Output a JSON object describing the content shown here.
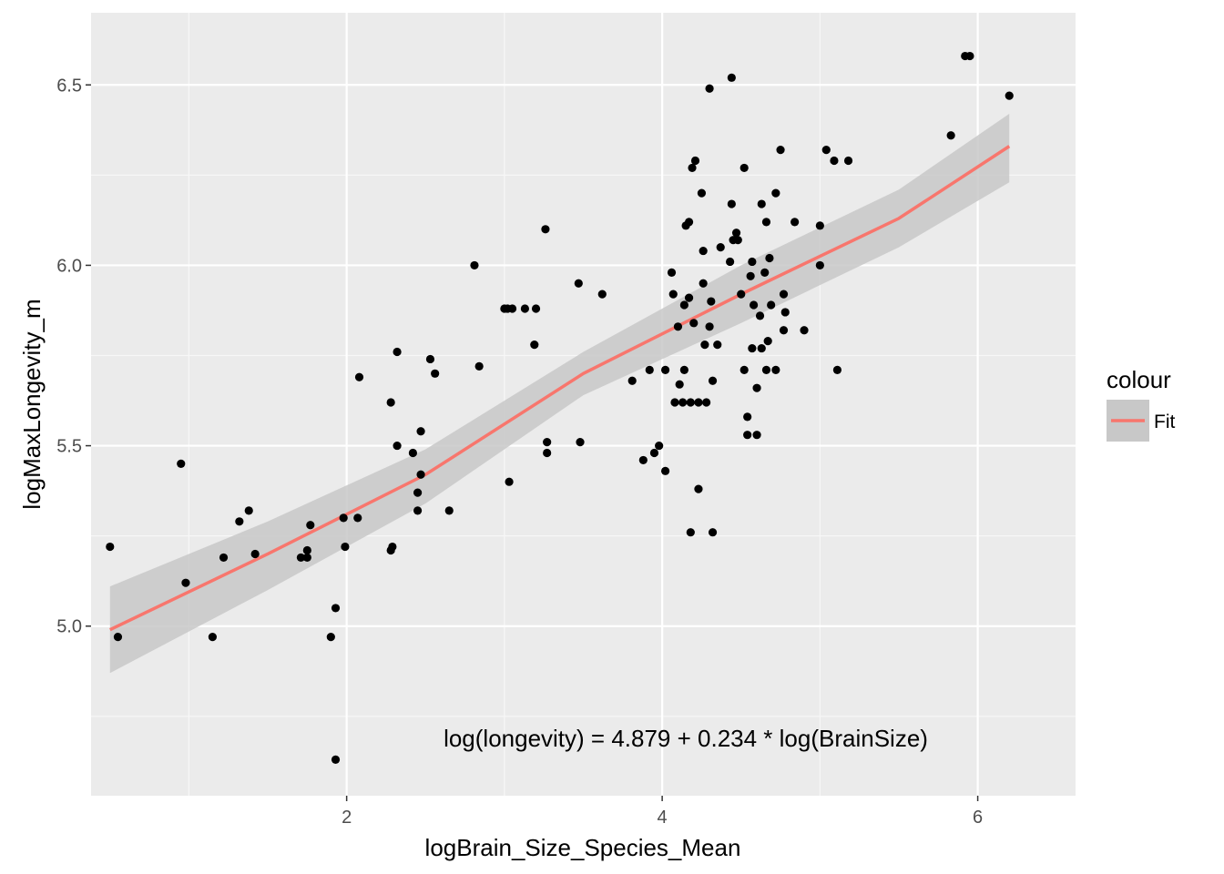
{
  "chart_data": {
    "type": "scatter",
    "xlabel": "logBrain_Size_Species_Mean",
    "ylabel": "logMaxLongevity_m",
    "xlim": [
      0.38,
      6.62
    ],
    "ylim": [
      4.53,
      6.7
    ],
    "x_ticks": [
      2,
      4,
      6
    ],
    "y_ticks": [
      5.0,
      5.5,
      6.0,
      6.5
    ],
    "x_tick_labels": [
      "2",
      "4",
      "6"
    ],
    "y_tick_labels": [
      "5.0",
      "5.5",
      "6.0",
      "6.5"
    ],
    "grid": true,
    "legend": {
      "title": "colour",
      "entries": [
        {
          "label": "Fit",
          "color": "#F8766D"
        }
      ],
      "position": "right"
    },
    "annotation": "log(longevity) =  4.879  +  0.234 * log(BrainSize)",
    "colors": {
      "panel": "#EBEBEB",
      "grid": "#FFFFFF",
      "points": "#000000",
      "fit_line": "#F8766D",
      "ribbon": "#C8C8C8"
    },
    "fit": {
      "x_range": [
        0.5,
        6.2
      ],
      "band_x": [
        0.5,
        1.5,
        2.5,
        3.5,
        4.5,
        5.5,
        6.2
      ],
      "band_lower": [
        4.87,
        5.1,
        5.34,
        5.64,
        5.84,
        6.05,
        6.23
      ],
      "band_upper": [
        5.11,
        5.29,
        5.49,
        5.76,
        6.0,
        6.21,
        6.42
      ],
      "line_y": [
        4.99,
        5.2,
        5.42,
        5.7,
        5.92,
        6.13,
        6.33
      ]
    },
    "points": [
      [
        0.5,
        5.22
      ],
      [
        0.55,
        4.97
      ],
      [
        0.95,
        5.45
      ],
      [
        0.98,
        5.12
      ],
      [
        1.15,
        4.97
      ],
      [
        1.22,
        5.19
      ],
      [
        1.32,
        5.29
      ],
      [
        1.38,
        5.32
      ],
      [
        1.42,
        5.2
      ],
      [
        1.71,
        5.19
      ],
      [
        1.75,
        5.21
      ],
      [
        1.77,
        5.28
      ],
      [
        1.75,
        5.19
      ],
      [
        1.9,
        4.97
      ],
      [
        1.93,
        5.05
      ],
      [
        1.93,
        4.63
      ],
      [
        1.98,
        5.3
      ],
      [
        1.99,
        5.22
      ],
      [
        2.07,
        5.3
      ],
      [
        2.08,
        5.69
      ],
      [
        2.28,
        5.62
      ],
      [
        2.28,
        5.21
      ],
      [
        2.29,
        5.22
      ],
      [
        2.32,
        5.76
      ],
      [
        2.32,
        5.5
      ],
      [
        2.42,
        5.48
      ],
      [
        2.45,
        5.37
      ],
      [
        2.45,
        5.32
      ],
      [
        2.47,
        5.42
      ],
      [
        2.47,
        5.54
      ],
      [
        2.53,
        5.74
      ],
      [
        2.56,
        5.7
      ],
      [
        2.65,
        5.32
      ],
      [
        2.81,
        6.0
      ],
      [
        2.84,
        5.72
      ],
      [
        3.0,
        5.88
      ],
      [
        3.02,
        5.88
      ],
      [
        3.03,
        5.4
      ],
      [
        3.05,
        5.88
      ],
      [
        3.13,
        5.88
      ],
      [
        3.2,
        5.88
      ],
      [
        3.19,
        5.78
      ],
      [
        3.26,
        6.1
      ],
      [
        3.27,
        5.51
      ],
      [
        3.27,
        5.48
      ],
      [
        3.47,
        5.95
      ],
      [
        3.48,
        5.51
      ],
      [
        3.62,
        5.92
      ],
      [
        3.81,
        5.68
      ],
      [
        3.88,
        5.46
      ],
      [
        3.92,
        5.71
      ],
      [
        3.95,
        5.48
      ],
      [
        3.98,
        5.5
      ],
      [
        4.02,
        5.71
      ],
      [
        4.02,
        5.43
      ],
      [
        4.06,
        5.98
      ],
      [
        4.07,
        5.92
      ],
      [
        4.08,
        5.62
      ],
      [
        4.1,
        5.83
      ],
      [
        4.11,
        5.67
      ],
      [
        4.14,
        5.89
      ],
      [
        4.14,
        5.71
      ],
      [
        4.15,
        6.11
      ],
      [
        4.13,
        5.62
      ],
      [
        4.17,
        6.12
      ],
      [
        4.18,
        5.62
      ],
      [
        4.17,
        5.91
      ],
      [
        4.18,
        5.26
      ],
      [
        4.19,
        6.27
      ],
      [
        4.2,
        5.84
      ],
      [
        4.21,
        6.29
      ],
      [
        4.23,
        5.38
      ],
      [
        4.23,
        5.62
      ],
      [
        4.25,
        6.2
      ],
      [
        4.26,
        5.95
      ],
      [
        4.26,
        6.04
      ],
      [
        4.27,
        5.78
      ],
      [
        4.28,
        5.62
      ],
      [
        4.3,
        5.83
      ],
      [
        4.31,
        5.9
      ],
      [
        4.3,
        6.49
      ],
      [
        4.32,
        5.26
      ],
      [
        4.32,
        5.68
      ],
      [
        4.35,
        5.78
      ],
      [
        4.37,
        6.05
      ],
      [
        4.44,
        6.52
      ],
      [
        4.43,
        6.01
      ],
      [
        4.44,
        6.17
      ],
      [
        4.45,
        6.07
      ],
      [
        4.47,
        6.09
      ],
      [
        4.48,
        6.07
      ],
      [
        4.5,
        5.92
      ],
      [
        4.52,
        6.27
      ],
      [
        4.52,
        5.71
      ],
      [
        4.54,
        5.58
      ],
      [
        4.54,
        5.53
      ],
      [
        4.56,
        5.97
      ],
      [
        4.57,
        5.77
      ],
      [
        4.57,
        6.01
      ],
      [
        4.58,
        5.89
      ],
      [
        4.6,
        5.66
      ],
      [
        4.6,
        5.53
      ],
      [
        4.62,
        5.86
      ],
      [
        4.63,
        5.77
      ],
      [
        4.63,
        6.17
      ],
      [
        4.65,
        5.98
      ],
      [
        4.66,
        5.71
      ],
      [
        4.66,
        6.12
      ],
      [
        4.67,
        5.79
      ],
      [
        4.68,
        6.02
      ],
      [
        4.69,
        5.89
      ],
      [
        4.72,
        5.71
      ],
      [
        4.72,
        6.2
      ],
      [
        4.75,
        6.32
      ],
      [
        4.77,
        5.92
      ],
      [
        4.77,
        5.82
      ],
      [
        4.78,
        5.87
      ],
      [
        4.84,
        6.12
      ],
      [
        4.9,
        5.82
      ],
      [
        5.0,
        6.11
      ],
      [
        5.0,
        6.0
      ],
      [
        5.04,
        6.32
      ],
      [
        5.09,
        6.29
      ],
      [
        5.11,
        5.71
      ],
      [
        5.18,
        6.29
      ],
      [
        5.83,
        6.36
      ],
      [
        5.92,
        6.58
      ],
      [
        5.95,
        6.58
      ],
      [
        6.2,
        6.47
      ]
    ]
  }
}
